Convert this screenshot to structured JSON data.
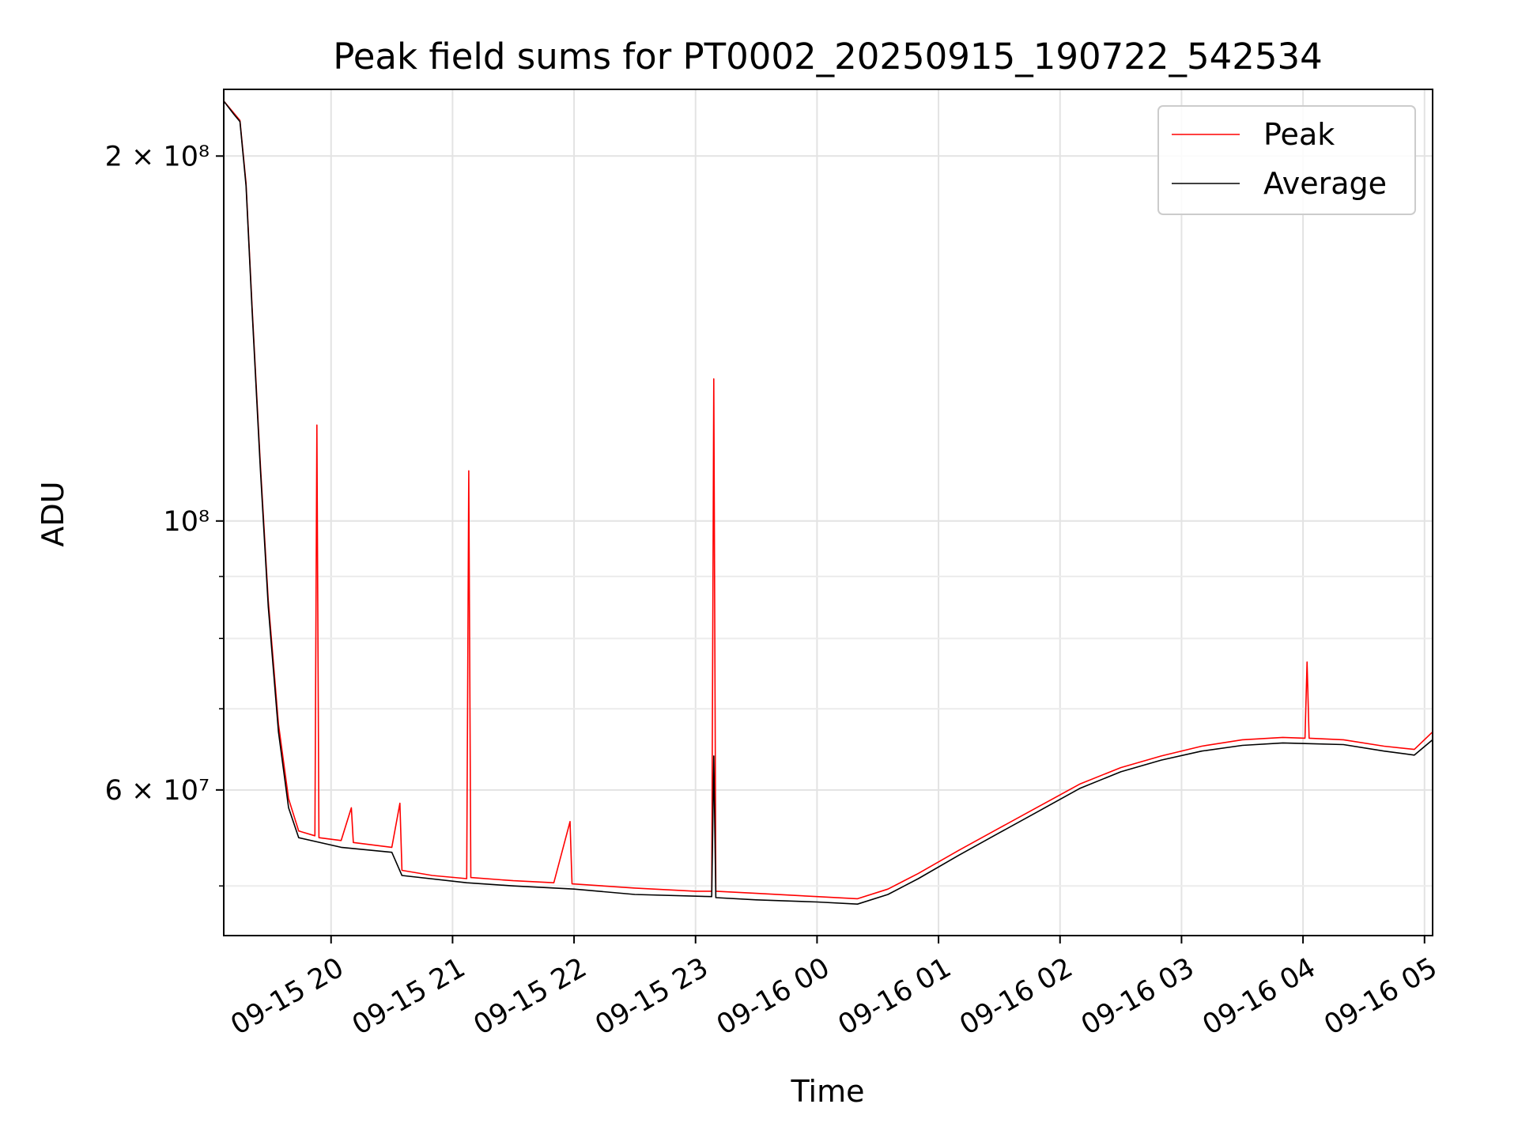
{
  "chart_data": {
    "type": "line",
    "title": "Peak field sums for PT0002_20250915_190722_542534",
    "xlabel": "Time",
    "ylabel": "ADU",
    "y_scale": "log",
    "ylim": [
      45500000,
      227000000
    ],
    "xlim": [
      "2025-09-15 19:07",
      "2025-09-16 05:04"
    ],
    "grid": true,
    "legend_position": "top-right",
    "x_ticks": [
      {
        "value": "2025-09-15 20:00",
        "label": "09-15 20"
      },
      {
        "value": "2025-09-15 21:00",
        "label": "09-15 21"
      },
      {
        "value": "2025-09-15 22:00",
        "label": "09-15 22"
      },
      {
        "value": "2025-09-15 23:00",
        "label": "09-15 23"
      },
      {
        "value": "2025-09-16 00:00",
        "label": "09-16 00"
      },
      {
        "value": "2025-09-16 01:00",
        "label": "09-16 01"
      },
      {
        "value": "2025-09-16 02:00",
        "label": "09-16 02"
      },
      {
        "value": "2025-09-16 03:00",
        "label": "09-16 03"
      },
      {
        "value": "2025-09-16 04:00",
        "label": "09-16 04"
      },
      {
        "value": "2025-09-16 05:00",
        "label": "09-16 05"
      }
    ],
    "y_major_ticks": [
      {
        "value": 200000000,
        "label": "2 × 10⁸"
      },
      {
        "value": 100000000,
        "label": "10⁸"
      },
      {
        "value": 60000000,
        "label": "6 × 10⁷"
      }
    ],
    "y_minor_ticks": [
      50000000,
      70000000,
      80000000,
      90000000
    ],
    "series": [
      {
        "name": "Peak",
        "color": "#ff0000",
        "points": [
          [
            "2025-09-15 19:07",
            222000000
          ],
          [
            "2025-09-15 19:12",
            217000000
          ],
          [
            "2025-09-15 19:15",
            214000000
          ],
          [
            "2025-09-15 19:18",
            190000000
          ],
          [
            "2025-09-15 19:21",
            150000000
          ],
          [
            "2025-09-15 19:25",
            112000000
          ],
          [
            "2025-09-15 19:29",
            86000000
          ],
          [
            "2025-09-15 19:34",
            68000000
          ],
          [
            "2025-09-15 19:39",
            59000000
          ],
          [
            "2025-09-15 19:44",
            55500000
          ],
          [
            "2025-09-15 19:52",
            55000000
          ],
          [
            "2025-09-15 19:53",
            120000000
          ],
          [
            "2025-09-15 19:54",
            54800000
          ],
          [
            "2025-09-15 20:05",
            54500000
          ],
          [
            "2025-09-15 20:10",
            58000000
          ],
          [
            "2025-09-15 20:11",
            54300000
          ],
          [
            "2025-09-15 20:30",
            53800000
          ],
          [
            "2025-09-15 20:34",
            58500000
          ],
          [
            "2025-09-15 20:35",
            51500000
          ],
          [
            "2025-09-15 20:50",
            51000000
          ],
          [
            "2025-09-15 21:07",
            50700000
          ],
          [
            "2025-09-15 21:08",
            110000000
          ],
          [
            "2025-09-15 21:09",
            50800000
          ],
          [
            "2025-09-15 21:30",
            50500000
          ],
          [
            "2025-09-15 21:50",
            50300000
          ],
          [
            "2025-09-15 21:58",
            56500000
          ],
          [
            "2025-09-15 21:59",
            50200000
          ],
          [
            "2025-09-15 22:30",
            49800000
          ],
          [
            "2025-09-15 23:00",
            49500000
          ],
          [
            "2025-09-15 23:08",
            49500000
          ],
          [
            "2025-09-15 23:09",
            131000000
          ],
          [
            "2025-09-15 23:10",
            49500000
          ],
          [
            "2025-09-15 23:30",
            49300000
          ],
          [
            "2025-09-16 00:00",
            49000000
          ],
          [
            "2025-09-16 00:20",
            48800000
          ],
          [
            "2025-09-16 00:35",
            49700000
          ],
          [
            "2025-09-16 00:50",
            51200000
          ],
          [
            "2025-09-16 01:10",
            53500000
          ],
          [
            "2025-09-16 01:30",
            55800000
          ],
          [
            "2025-09-16 01:50",
            58200000
          ],
          [
            "2025-09-16 02:10",
            60700000
          ],
          [
            "2025-09-16 02:30",
            62600000
          ],
          [
            "2025-09-16 02:50",
            64000000
          ],
          [
            "2025-09-16 03:10",
            65200000
          ],
          [
            "2025-09-16 03:30",
            66000000
          ],
          [
            "2025-09-16 03:50",
            66300000
          ],
          [
            "2025-09-16 04:01",
            66200000
          ],
          [
            "2025-09-16 04:02",
            76500000
          ],
          [
            "2025-09-16 04:03",
            66200000
          ],
          [
            "2025-09-16 04:20",
            66000000
          ],
          [
            "2025-09-16 04:40",
            65200000
          ],
          [
            "2025-09-16 04:55",
            64800000
          ],
          [
            "2025-09-16 05:04",
            67000000
          ]
        ]
      },
      {
        "name": "Average",
        "color": "#000000",
        "points": [
          [
            "2025-09-15 19:07",
            222000000
          ],
          [
            "2025-09-15 19:12",
            216500000
          ],
          [
            "2025-09-15 19:15",
            213500000
          ],
          [
            "2025-09-15 19:18",
            189000000
          ],
          [
            "2025-09-15 19:21",
            149000000
          ],
          [
            "2025-09-15 19:25",
            111000000
          ],
          [
            "2025-09-15 19:29",
            85000000
          ],
          [
            "2025-09-15 19:34",
            67000000
          ],
          [
            "2025-09-15 19:39",
            58000000
          ],
          [
            "2025-09-15 19:44",
            54800000
          ],
          [
            "2025-09-15 20:05",
            53800000
          ],
          [
            "2025-09-15 20:30",
            53300000
          ],
          [
            "2025-09-15 20:35",
            51000000
          ],
          [
            "2025-09-15 21:07",
            50300000
          ],
          [
            "2025-09-15 21:30",
            50000000
          ],
          [
            "2025-09-15 22:00",
            49700000
          ],
          [
            "2025-09-15 22:30",
            49200000
          ],
          [
            "2025-09-15 23:08",
            49000000
          ],
          [
            "2025-09-15 23:09",
            64000000
          ],
          [
            "2025-09-15 23:10",
            48900000
          ],
          [
            "2025-09-15 23:30",
            48700000
          ],
          [
            "2025-09-16 00:00",
            48500000
          ],
          [
            "2025-09-16 00:20",
            48300000
          ],
          [
            "2025-09-16 00:35",
            49200000
          ],
          [
            "2025-09-16 00:50",
            50700000
          ],
          [
            "2025-09-16 01:10",
            53000000
          ],
          [
            "2025-09-16 01:30",
            55300000
          ],
          [
            "2025-09-16 01:50",
            57700000
          ],
          [
            "2025-09-16 02:10",
            60200000
          ],
          [
            "2025-09-16 02:30",
            62100000
          ],
          [
            "2025-09-16 02:50",
            63500000
          ],
          [
            "2025-09-16 03:10",
            64600000
          ],
          [
            "2025-09-16 03:30",
            65300000
          ],
          [
            "2025-09-16 03:50",
            65600000
          ],
          [
            "2025-09-16 04:20",
            65400000
          ],
          [
            "2025-09-16 04:40",
            64600000
          ],
          [
            "2025-09-16 04:55",
            64100000
          ],
          [
            "2025-09-16 05:04",
            66000000
          ]
        ]
      }
    ]
  }
}
